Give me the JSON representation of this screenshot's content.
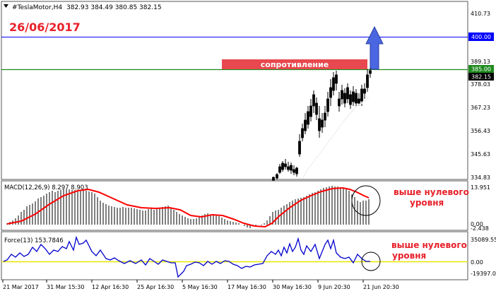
{
  "header": {
    "symbol": "#TeslaMotor,H4",
    "ohlc": "382.93 384.49 380.85 382.15"
  },
  "annotations": {
    "date": "26/06/2017",
    "resistance": "сопротивление",
    "macd_note": [
      "выше нулевого",
      "уровня"
    ],
    "force_note": [
      "выше нулевого",
      "уровня"
    ]
  },
  "colors": {
    "red": "#e8202a",
    "blue_line": "#0000ff",
    "green_line": "#1f8a1f",
    "arrow": "#3f5fd8",
    "macd_signal": "#ff0000",
    "force_line": "#0000cc",
    "zero_line": "#e6e600"
  },
  "chart_data": [
    {
      "type": "candlestick",
      "x": [
        "21 Mar 2017",
        "31 Mar 15:30",
        "12 Apr 16:30",
        "25 Apr 16:30",
        "5 May 16:30",
        "17 May 16:30",
        "30 May 16:30",
        "9 Jun 20:30",
        "21 Jun 20:30"
      ],
      "ylim": [
        334.83,
        410.73
      ],
      "yticks": [
        "410.73",
        "400.00",
        "389.13",
        "385.00",
        "382.15",
        "378.03",
        "367.23",
        "356.43",
        "345.63",
        "334.83"
      ],
      "horizontal_lines": [
        {
          "value": 400.0,
          "label": "400.00",
          "color": "#0000ff"
        },
        {
          "value": 385.0,
          "label": "385.00",
          "color": "#1f8a1f"
        }
      ],
      "last_price": "382.15",
      "moving_average": [
        [
          428,
          253
        ],
        [
          436,
          239
        ],
        [
          446,
          226
        ],
        [
          456,
          213
        ],
        [
          466,
          199
        ],
        [
          476,
          186
        ],
        [
          486,
          172
        ],
        [
          496,
          160
        ],
        [
          504,
          151
        ],
        [
          512,
          146
        ],
        [
          522,
          138
        ]
      ],
      "candles": [
        [
          387,
          250,
          256,
          251,
          255
        ],
        [
          392,
          245,
          254,
          247,
          252
        ],
        [
          396,
          232,
          246,
          236,
          244
        ],
        [
          400,
          228,
          243,
          231,
          240
        ],
        [
          404,
          225,
          240,
          232,
          236
        ],
        [
          408,
          229,
          243,
          236,
          240
        ],
        [
          412,
          230,
          246,
          234,
          241
        ],
        [
          416,
          234,
          248,
          240,
          244
        ],
        [
          420,
          236,
          250,
          238,
          246
        ],
        [
          424,
          190,
          222,
          200,
          218
        ],
        [
          428,
          175,
          200,
          182,
          195
        ],
        [
          432,
          160,
          190,
          170,
          185
        ],
        [
          436,
          150,
          182,
          158,
          176
        ],
        [
          440,
          140,
          172,
          150,
          165
        ],
        [
          444,
          128,
          160,
          134,
          150
        ],
        [
          448,
          138,
          170,
          146,
          162
        ],
        [
          452,
          150,
          195,
          168,
          185
        ],
        [
          456,
          160,
          188,
          170,
          180
        ],
        [
          460,
          150,
          180,
          160,
          170
        ],
        [
          464,
          130,
          165,
          140,
          158
        ],
        [
          468,
          112,
          150,
          124,
          138
        ],
        [
          472,
          102,
          135,
          110,
          128
        ],
        [
          476,
          100,
          128,
          106,
          118
        ],
        [
          480,
          130,
          158,
          140,
          150
        ],
        [
          484,
          120,
          148,
          128,
          140
        ],
        [
          488,
          125,
          152,
          132,
          146
        ],
        [
          492,
          118,
          146,
          124,
          140
        ],
        [
          496,
          128,
          154,
          134,
          148
        ],
        [
          500,
          122,
          150,
          130,
          144
        ],
        [
          504,
          126,
          152,
          132,
          146
        ],
        [
          508,
          132,
          150,
          140,
          146
        ],
        [
          512,
          120,
          150,
          126,
          143
        ],
        [
          516,
          118,
          140,
          126,
          132
        ],
        [
          520,
          98,
          130,
          106,
          124
        ],
        [
          524,
          96,
          110,
          100,
          104
        ]
      ]
    },
    {
      "type": "bar",
      "title": "MACD(12,26,9) 8.297 8.903",
      "ylim": [
        -2.438,
        13.951
      ],
      "yticks": [
        "13.951",
        "0.00",
        "-2.438"
      ],
      "histogram": [
        [
          10,
          316
        ],
        [
          14,
          314
        ],
        [
          18,
          312
        ],
        [
          22,
          309
        ],
        [
          26,
          305
        ],
        [
          30,
          300
        ],
        [
          34,
          297
        ],
        [
          38,
          292
        ],
        [
          42,
          290
        ],
        [
          46,
          288
        ],
        [
          50,
          285
        ],
        [
          54,
          281
        ],
        [
          58,
          279
        ],
        [
          62,
          277
        ],
        [
          66,
          274
        ],
        [
          70,
          272
        ],
        [
          74,
          270
        ],
        [
          78,
          272
        ],
        [
          82,
          270
        ],
        [
          86,
          269
        ],
        [
          90,
          268
        ],
        [
          94,
          268
        ],
        [
          98,
          268
        ],
        [
          102,
          269
        ],
        [
          106,
          269
        ],
        [
          110,
          270
        ],
        [
          114,
          270
        ],
        [
          118,
          270
        ],
        [
          122,
          270
        ],
        [
          126,
          271
        ],
        [
          130,
          272
        ],
        [
          134,
          274
        ],
        [
          138,
          279
        ],
        [
          142,
          284
        ],
        [
          146,
          287
        ],
        [
          150,
          289
        ],
        [
          154,
          291
        ],
        [
          158,
          292
        ],
        [
          162,
          293
        ],
        [
          166,
          294
        ],
        [
          170,
          294
        ],
        [
          174,
          293
        ],
        [
          178,
          294
        ],
        [
          182,
          294
        ],
        [
          186,
          294
        ],
        [
          190,
          295
        ],
        [
          194,
          296
        ],
        [
          198,
          297
        ],
        [
          202,
          298
        ],
        [
          206,
          298
        ],
        [
          210,
          296
        ],
        [
          214,
          295
        ],
        [
          218,
          297
        ],
        [
          222,
          295
        ],
        [
          226,
          294
        ],
        [
          230,
          293
        ],
        [
          234,
          292
        ],
        [
          238,
          291
        ],
        [
          242,
          295
        ],
        [
          246,
          297
        ],
        [
          250,
          300
        ],
        [
          254,
          303
        ],
        [
          258,
          305
        ],
        [
          262,
          307
        ],
        [
          266,
          309
        ],
        [
          270,
          310
        ],
        [
          274,
          310
        ],
        [
          278,
          309
        ],
        [
          282,
          307
        ],
        [
          286,
          305
        ],
        [
          290,
          303
        ],
        [
          294,
          302
        ],
        [
          298,
          304
        ],
        [
          302,
          305
        ],
        [
          306,
          305
        ],
        [
          310,
          306
        ],
        [
          314,
          308
        ],
        [
          318,
          310
        ],
        [
          322,
          312
        ],
        [
          326,
          313
        ],
        [
          330,
          314
        ],
        [
          334,
          315
        ],
        [
          338,
          316
        ],
        [
          342,
          318
        ],
        [
          346,
          320
        ],
        [
          350,
          322
        ],
        [
          354,
          323
        ],
        [
          358,
          320
        ],
        [
          362,
          319
        ],
        [
          366,
          318
        ],
        [
          370,
          319
        ],
        [
          374,
          316
        ],
        [
          378,
          312
        ],
        [
          382,
          306
        ],
        [
          386,
          300
        ],
        [
          390,
          298
        ],
        [
          394,
          297
        ],
        [
          398,
          294
        ],
        [
          402,
          291
        ],
        [
          406,
          289
        ],
        [
          410,
          286
        ],
        [
          414,
          284
        ],
        [
          418,
          282
        ],
        [
          422,
          281
        ],
        [
          426,
          280
        ],
        [
          430,
          279
        ],
        [
          434,
          277
        ],
        [
          438,
          275
        ],
        [
          442,
          273
        ],
        [
          446,
          272
        ],
        [
          450,
          270
        ],
        [
          454,
          268
        ],
        [
          458,
          266
        ],
        [
          462,
          265
        ],
        [
          466,
          264
        ],
        [
          470,
          263
        ],
        [
          474,
          264
        ],
        [
          478,
          264
        ],
        [
          482,
          265
        ],
        [
          486,
          266
        ],
        [
          490,
          268
        ],
        [
          494,
          270
        ],
        [
          498,
          275
        ],
        [
          502,
          279
        ],
        [
          506,
          284
        ],
        [
          510,
          286
        ],
        [
          514,
          284
        ],
        [
          518,
          284
        ],
        [
          522,
          282
        ]
      ],
      "signal": [
        [
          10,
          317
        ],
        [
          30,
          313
        ],
        [
          50,
          303
        ],
        [
          70,
          289
        ],
        [
          90,
          277
        ],
        [
          110,
          270
        ],
        [
          125,
          268
        ],
        [
          140,
          272
        ],
        [
          160,
          281
        ],
        [
          180,
          290
        ],
        [
          200,
          294
        ],
        [
          220,
          295
        ],
        [
          240,
          294
        ],
        [
          255,
          297
        ],
        [
          270,
          305
        ],
        [
          285,
          307
        ],
        [
          300,
          304
        ],
        [
          315,
          305
        ],
        [
          330,
          310
        ],
        [
          345,
          316
        ],
        [
          360,
          320
        ],
        [
          375,
          321
        ],
        [
          385,
          316
        ],
        [
          395,
          306
        ],
        [
          410,
          294
        ],
        [
          425,
          284
        ],
        [
          440,
          277
        ],
        [
          455,
          271
        ],
        [
          470,
          267
        ],
        [
          485,
          266
        ],
        [
          495,
          268
        ],
        [
          505,
          272
        ],
        [
          515,
          277
        ],
        [
          522,
          280
        ]
      ]
    },
    {
      "type": "line",
      "title": "Force(13) 153.7846",
      "ylim": [
        -19397,
        35089.55
      ],
      "yticks": [
        "35089.55",
        "0.00",
        "-19397.00"
      ],
      "series": [
        [
          5,
          370
        ],
        [
          10,
          368
        ],
        [
          16,
          360
        ],
        [
          22,
          364
        ],
        [
          28,
          358
        ],
        [
          34,
          363
        ],
        [
          40,
          360
        ],
        [
          46,
          350
        ],
        [
          52,
          356
        ],
        [
          58,
          346
        ],
        [
          64,
          352
        ],
        [
          70,
          360
        ],
        [
          76,
          354
        ],
        [
          82,
          356
        ],
        [
          88,
          349
        ],
        [
          94,
          352
        ],
        [
          98,
          342
        ],
        [
          104,
          354
        ],
        [
          108,
          336
        ],
        [
          112,
          346
        ],
        [
          118,
          344
        ],
        [
          122,
          340
        ],
        [
          126,
          348
        ],
        [
          130,
          356
        ],
        [
          136,
          362
        ],
        [
          142,
          354
        ],
        [
          150,
          366
        ],
        [
          156,
          368
        ],
        [
          162,
          365
        ],
        [
          168,
          369
        ],
        [
          176,
          373
        ],
        [
          184,
          369
        ],
        [
          192,
          373
        ],
        [
          200,
          368
        ],
        [
          206,
          375
        ],
        [
          212,
          366
        ],
        [
          218,
          370
        ],
        [
          224,
          374
        ],
        [
          230,
          368
        ],
        [
          236,
          370
        ],
        [
          242,
          372
        ],
        [
          248,
          372
        ],
        [
          252,
          392
        ],
        [
          256,
          388
        ],
        [
          260,
          384
        ],
        [
          264,
          376
        ],
        [
          270,
          374
        ],
        [
          276,
          371
        ],
        [
          282,
          372
        ],
        [
          288,
          376
        ],
        [
          294,
          370
        ],
        [
          300,
          374
        ],
        [
          306,
          370
        ],
        [
          312,
          373
        ],
        [
          318,
          369
        ],
        [
          324,
          370
        ],
        [
          330,
          374
        ],
        [
          336,
          376
        ],
        [
          342,
          380
        ],
        [
          348,
          377
        ],
        [
          354,
          378
        ],
        [
          360,
          375
        ],
        [
          366,
          374
        ],
        [
          372,
          373
        ],
        [
          378,
          362
        ],
        [
          384,
          356
        ],
        [
          390,
          360
        ],
        [
          394,
          354
        ],
        [
          398,
          362
        ],
        [
          402,
          350
        ],
        [
          406,
          358
        ],
        [
          410,
          345
        ],
        [
          414,
          356
        ],
        [
          418,
          350
        ],
        [
          422,
          338
        ],
        [
          426,
          354
        ],
        [
          430,
          360
        ],
        [
          434,
          348
        ],
        [
          440,
          356
        ],
        [
          446,
          346
        ],
        [
          452,
          366
        ],
        [
          456,
          356
        ],
        [
          460,
          346
        ],
        [
          464,
          340
        ],
        [
          468,
          352
        ],
        [
          472,
          340
        ],
        [
          476,
          358
        ],
        [
          482,
          364
        ],
        [
          488,
          366
        ],
        [
          494,
          364
        ],
        [
          500,
          372
        ],
        [
          506,
          360
        ],
        [
          512,
          366
        ],
        [
          518,
          370
        ],
        [
          524,
          370
        ]
      ]
    }
  ],
  "x_axis": {
    "labels": [
      "21 Mar 2017",
      "31 Mar 15:30",
      "12 Apr 16:30",
      "25 Apr 16:30",
      "5 May 16:30",
      "17 May 16:30",
      "30 May 16:30",
      "9 Jun 20:30",
      "21 Jun 20:30"
    ]
  }
}
